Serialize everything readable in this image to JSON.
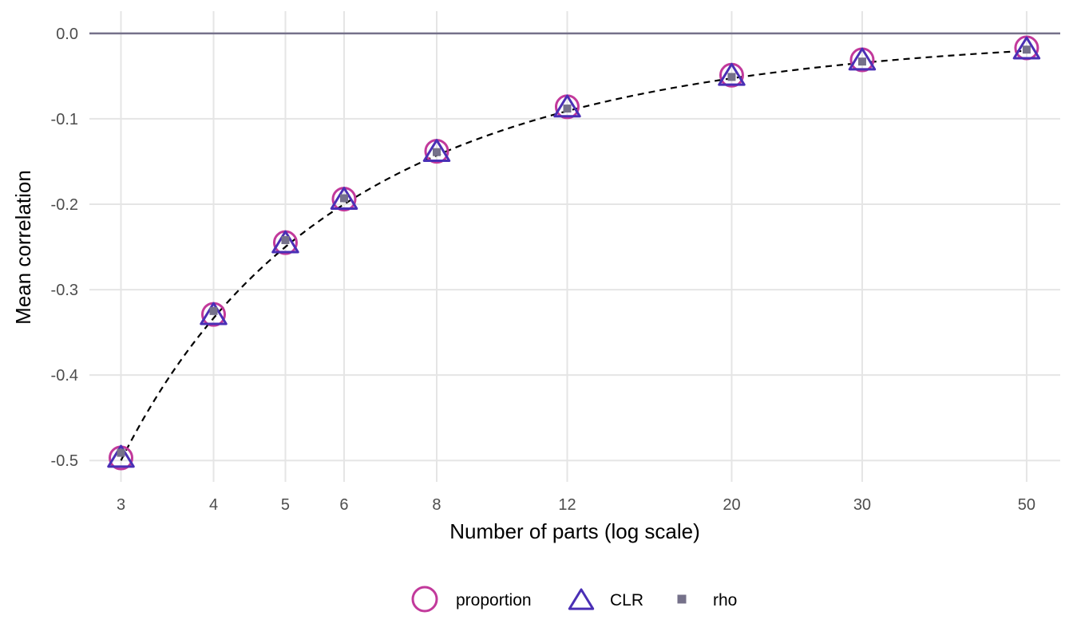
{
  "chart_data": {
    "type": "scatter",
    "title": "",
    "xlabel": "Number of parts (log scale)",
    "ylabel": "Mean correlation",
    "x_scale": "log",
    "x_ticks": [
      3,
      4,
      5,
      6,
      8,
      12,
      20,
      30,
      50
    ],
    "x_tick_labels": [
      "3",
      "4",
      "5",
      "6",
      "8",
      "12",
      "20",
      "30",
      "50"
    ],
    "y_ticks": [
      0.0,
      -0.1,
      -0.2,
      -0.3,
      -0.4,
      -0.5
    ],
    "y_tick_labels": [
      "0.0",
      "-0.1",
      "-0.2",
      "-0.3",
      "-0.4",
      "-0.5"
    ],
    "xlim": [
      2.72,
      55.5
    ],
    "ylim": [
      -0.525,
      0.026
    ],
    "grid": true,
    "reference_line": {
      "y": 0.0,
      "color": "#75718a"
    },
    "x": [
      3,
      4,
      5,
      6,
      8,
      12,
      20,
      30,
      50
    ],
    "series": [
      {
        "name": "proportion",
        "marker": "open-circle",
        "color": "#c2399b",
        "values": [
          -0.497,
          -0.329,
          -0.245,
          -0.194,
          -0.138,
          -0.086,
          -0.049,
          -0.031,
          -0.017
        ]
      },
      {
        "name": "CLR",
        "marker": "open-triangle",
        "color": "#4a2fb5",
        "values": [
          -0.497,
          -0.33,
          -0.246,
          -0.195,
          -0.139,
          -0.087,
          -0.05,
          -0.032,
          -0.019
        ]
      },
      {
        "name": "rho",
        "marker": "filled-square",
        "color": "#75718a",
        "values": [
          -0.491,
          -0.325,
          -0.242,
          -0.193,
          -0.139,
          -0.088,
          -0.051,
          -0.033,
          -0.019
        ]
      }
    ],
    "fit_line": {
      "style": "dashed",
      "color": "#000000",
      "formula": "-1/(n-1)"
    },
    "legend_position": "bottom"
  }
}
